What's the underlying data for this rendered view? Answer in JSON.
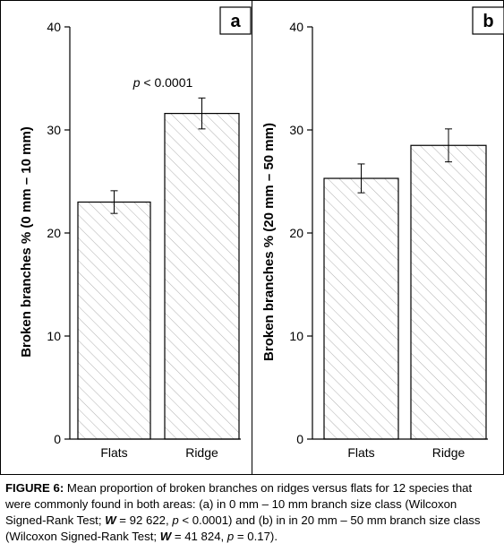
{
  "caption": {
    "label": "FIGURE 6:",
    "seg1": " Mean proportion of broken branches on ridges versus flats for 12 species that were commonly found in both areas: (a) in 0 mm – 10 mm branch size class (Wilcoxon Signed-Rank Test; ",
    "w_symbol": "W",
    "seg2": " = 92 622, ",
    "p_symbol1": "p",
    "seg3": " < 0.0001) and (b) in in 20 mm – 50 mm branch size class (Wilcoxon Signed-Rank Test; ",
    "w_symbol2": "W",
    "seg4": " = 41 824, ",
    "p_symbol2": "p",
    "seg5": " = 0.17)."
  },
  "colors": {
    "bar_fill": "#ffffff",
    "hatch": "#b0b0b0",
    "axis": "#000000"
  },
  "chart_data": [
    {
      "panel": "a",
      "type": "bar",
      "categories": [
        "Flats",
        "Ridge"
      ],
      "values": [
        23.0,
        31.6
      ],
      "error": [
        [
          21.9,
          24.1
        ],
        [
          30.1,
          33.1
        ]
      ],
      "ylabel": "Broken branches % (0 mm – 10 mm)",
      "ylim": [
        0,
        40
      ],
      "yticks": [
        0,
        10,
        20,
        30,
        40
      ],
      "annotation": {
        "italic": "p",
        "rest": " < 0.0001"
      },
      "grid": false,
      "pattern": "diagonal hatch"
    },
    {
      "panel": "b",
      "type": "bar",
      "categories": [
        "Flats",
        "Ridge"
      ],
      "values": [
        25.3,
        28.5
      ],
      "error": [
        [
          23.9,
          26.7
        ],
        [
          26.9,
          30.1
        ]
      ],
      "ylabel": "Broken branches % (20 mm – 50 mm)",
      "ylim": [
        0,
        40
      ],
      "yticks": [
        0,
        10,
        20,
        30,
        40
      ],
      "grid": false,
      "pattern": "diagonal hatch"
    }
  ]
}
